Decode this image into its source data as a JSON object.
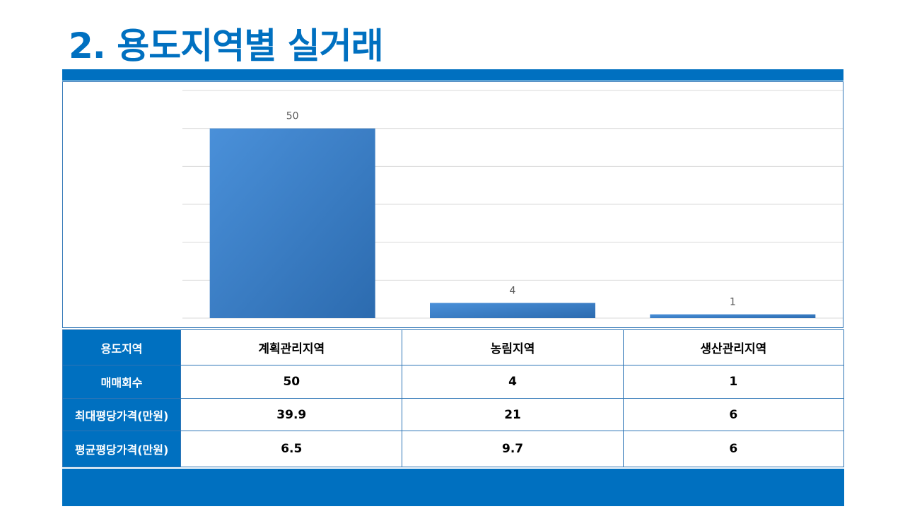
{
  "title": "2. 용도지역별 실거래",
  "colors": {
    "accent": "#0070C0",
    "bar_light": "#4A90D9",
    "bar_dark": "#2C6BAF",
    "grid": "#D9D9D9",
    "border": "#2E75B6"
  },
  "chart_data": {
    "type": "bar",
    "categories": [
      "계획관리지역",
      "농림지역",
      "생산관리지역"
    ],
    "values": [
      50,
      4,
      1
    ],
    "data_labels": [
      "50",
      "4",
      "1"
    ],
    "ylim": [
      0,
      60
    ],
    "grid": true,
    "legend": "none"
  },
  "table": {
    "rows": [
      {
        "header": "용도지역",
        "cells": [
          "계획관리지역",
          "농림지역",
          "생산관리지역"
        ]
      },
      {
        "header": "매매회수",
        "cells": [
          "50",
          "4",
          "1"
        ]
      },
      {
        "header": "최대평당가격(만원)",
        "cells": [
          "39.9",
          "21",
          "6"
        ]
      },
      {
        "header": "평균평당가격(만원)",
        "cells": [
          "6.5",
          "9.7",
          "6"
        ]
      }
    ]
  }
}
